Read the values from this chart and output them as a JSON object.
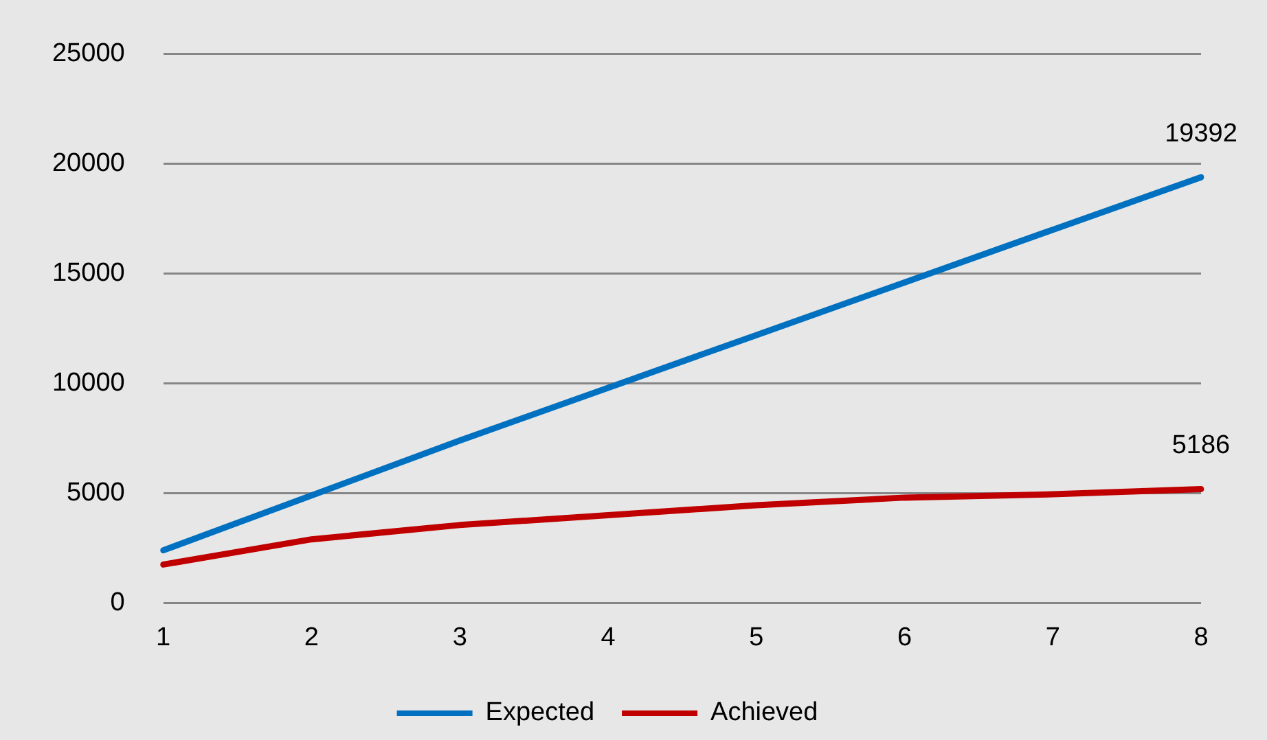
{
  "chart_data": {
    "type": "line",
    "categories": [
      "1",
      "2",
      "3",
      "4",
      "5",
      "6",
      "7",
      "8"
    ],
    "series": [
      {
        "name": "Expected",
        "color": "#0070c0",
        "values": [
          2400,
          4900,
          7400,
          9800,
          12200,
          14600,
          17000,
          19392
        ],
        "value_labels": [
          null,
          null,
          null,
          null,
          null,
          null,
          null,
          "19392"
        ]
      },
      {
        "name": "Achieved",
        "color": "#c00000",
        "values": [
          1750,
          2900,
          3550,
          4000,
          4450,
          4800,
          4950,
          5186
        ],
        "value_labels": [
          null,
          null,
          null,
          null,
          null,
          null,
          null,
          "5186"
        ]
      }
    ],
    "ylim": [
      0,
      25000
    ],
    "yticks": [
      0,
      5000,
      10000,
      15000,
      20000,
      25000
    ],
    "grid": "y",
    "legend": "bottom",
    "marker": "none",
    "line_style": "solid"
  }
}
